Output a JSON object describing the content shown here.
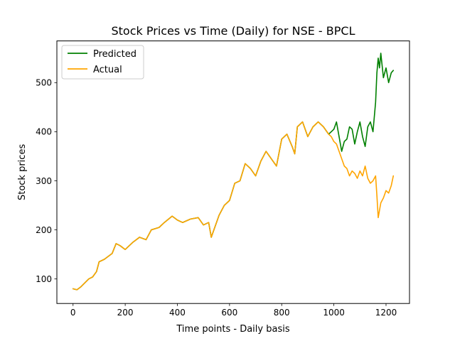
{
  "chart_data": {
    "type": "line",
    "title": "Stock Prices vs Time (Daily) for NSE - BPCL",
    "xlabel": "Time points - Daily basis",
    "ylabel": "Stock prices",
    "xlim": [
      -62,
      1290
    ],
    "ylim": [
      50,
      585
    ],
    "xticks": [
      0,
      200,
      400,
      600,
      800,
      1000,
      1200
    ],
    "yticks": [
      100,
      200,
      300,
      400,
      500
    ],
    "grid": false,
    "legend_position": "upper-left",
    "series": [
      {
        "name": "Predicted",
        "color": "#008000",
        "x": [
          0,
          15,
          30,
          45,
          60,
          75,
          90,
          100,
          120,
          150,
          165,
          180,
          200,
          230,
          255,
          280,
          300,
          330,
          350,
          380,
          400,
          420,
          450,
          480,
          500,
          520,
          530,
          560,
          580,
          600,
          620,
          640,
          660,
          680,
          700,
          720,
          740,
          760,
          780,
          800,
          820,
          840,
          850,
          860,
          880,
          900,
          920,
          940,
          960,
          980,
          990,
          1000,
          1010,
          1020,
          1030,
          1040,
          1050,
          1060,
          1070,
          1080,
          1090,
          1100,
          1110,
          1120,
          1130,
          1140,
          1150,
          1160,
          1165,
          1170,
          1175,
          1180,
          1190,
          1200,
          1210,
          1220,
          1228
        ],
        "values": [
          80,
          78,
          84,
          92,
          100,
          104,
          115,
          135,
          140,
          152,
          172,
          168,
          160,
          175,
          185,
          180,
          200,
          205,
          215,
          228,
          220,
          215,
          222,
          225,
          210,
          215,
          185,
          230,
          250,
          260,
          295,
          300,
          335,
          325,
          310,
          340,
          360,
          345,
          330,
          385,
          395,
          370,
          355,
          410,
          420,
          390,
          410,
          420,
          410,
          395,
          400,
          405,
          420,
          390,
          360,
          380,
          385,
          410,
          405,
          375,
          400,
          420,
          390,
          370,
          410,
          420,
          400,
          460,
          520,
          550,
          530,
          560,
          510,
          530,
          500,
          520,
          525
        ]
      },
      {
        "name": "Actual",
        "color": "#FFA500",
        "x": [
          0,
          15,
          30,
          45,
          60,
          75,
          90,
          100,
          120,
          150,
          165,
          180,
          200,
          230,
          255,
          280,
          300,
          330,
          350,
          380,
          400,
          420,
          450,
          480,
          500,
          520,
          530,
          560,
          580,
          600,
          620,
          640,
          660,
          680,
          700,
          720,
          740,
          760,
          780,
          800,
          820,
          840,
          850,
          860,
          880,
          900,
          920,
          940,
          960,
          980,
          990,
          1000,
          1010,
          1020,
          1030,
          1040,
          1050,
          1060,
          1070,
          1080,
          1090,
          1100,
          1110,
          1120,
          1130,
          1140,
          1150,
          1160,
          1165,
          1170,
          1175,
          1180,
          1190,
          1200,
          1210,
          1220,
          1228
        ],
        "values": [
          80,
          78,
          84,
          92,
          100,
          104,
          115,
          135,
          140,
          152,
          172,
          168,
          160,
          175,
          185,
          180,
          200,
          205,
          215,
          228,
          220,
          215,
          222,
          225,
          210,
          215,
          185,
          230,
          250,
          260,
          295,
          300,
          335,
          325,
          310,
          340,
          360,
          345,
          330,
          385,
          395,
          370,
          355,
          410,
          420,
          390,
          410,
          420,
          410,
          395,
          390,
          380,
          375,
          360,
          345,
          330,
          325,
          310,
          320,
          315,
          305,
          320,
          310,
          330,
          305,
          295,
          300,
          310,
          270,
          225,
          240,
          255,
          265,
          280,
          275,
          290,
          310
        ]
      }
    ]
  }
}
